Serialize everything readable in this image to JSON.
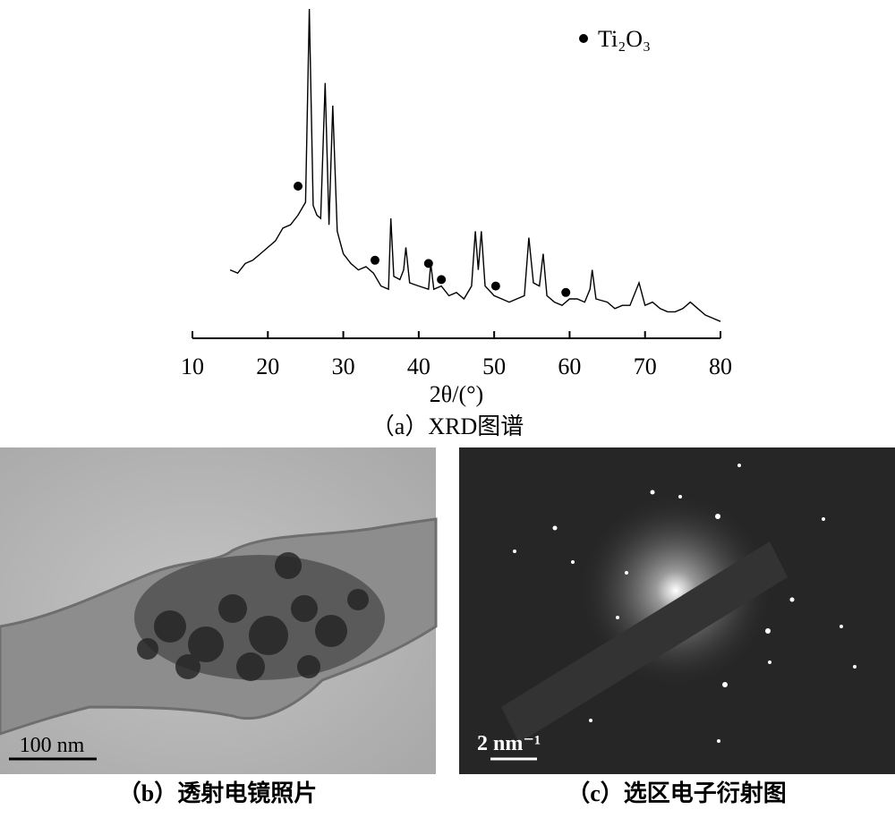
{
  "chart_data": {
    "type": "line",
    "xlabel": "2θ/(°)",
    "caption": "（a）XRD图谱",
    "xlim": [
      10,
      80
    ],
    "xticks": [
      10,
      20,
      30,
      40,
      50,
      60,
      70,
      80
    ],
    "ylim": [
      0,
      100
    ],
    "color": "#000000",
    "x": [
      15,
      16,
      17,
      18,
      19,
      20,
      21,
      22,
      23,
      24,
      25,
      25.5,
      26,
      26.5,
      27,
      27.6,
      28.1,
      28.6,
      29.2,
      30,
      31,
      32,
      33,
      34,
      35,
      36,
      36.3,
      36.7,
      37.5,
      38,
      38.3,
      38.8,
      40,
      41.3,
      41.6,
      42,
      43,
      44,
      45,
      46,
      47,
      47.5,
      47.9,
      48.3,
      48.8,
      50,
      51,
      52,
      53,
      54,
      54.6,
      55.2,
      56,
      56.5,
      57,
      58,
      59,
      60,
      61,
      62,
      62.7,
      63,
      63.5,
      65,
      66,
      67,
      68,
      69.2,
      70,
      71,
      72,
      73,
      74,
      75,
      76,
      77,
      78,
      79,
      80
    ],
    "values": [
      19,
      18,
      21,
      22,
      24,
      26,
      28,
      32,
      33,
      36,
      40,
      100,
      39,
      36,
      35,
      77,
      33,
      70,
      31,
      24,
      21,
      19,
      20,
      18,
      14,
      13,
      35,
      17,
      16,
      19,
      26,
      15,
      14,
      13,
      21,
      13,
      14,
      11,
      12,
      10,
      14,
      31,
      19,
      31,
      14,
      11,
      10,
      9,
      10,
      11,
      29,
      15,
      14,
      24,
      11,
      9,
      8,
      10,
      10,
      9,
      13,
      19,
      10,
      9,
      7,
      8,
      8,
      15,
      8,
      9,
      7,
      6,
      6,
      7,
      9,
      7,
      5,
      4,
      3
    ],
    "markers": {
      "name": "Ti₂O₃",
      "x": [
        24,
        34.2,
        41.3,
        43,
        50.2,
        59.5
      ],
      "y": [
        45,
        22,
        21,
        16,
        14,
        12
      ]
    }
  },
  "panel_b": {
    "caption": "（b）透射电镜照片",
    "scale_bar": "100 nm"
  },
  "panel_c": {
    "caption": "（c）选区电子衍射图",
    "scale_bar": "2 nm⁻¹"
  }
}
